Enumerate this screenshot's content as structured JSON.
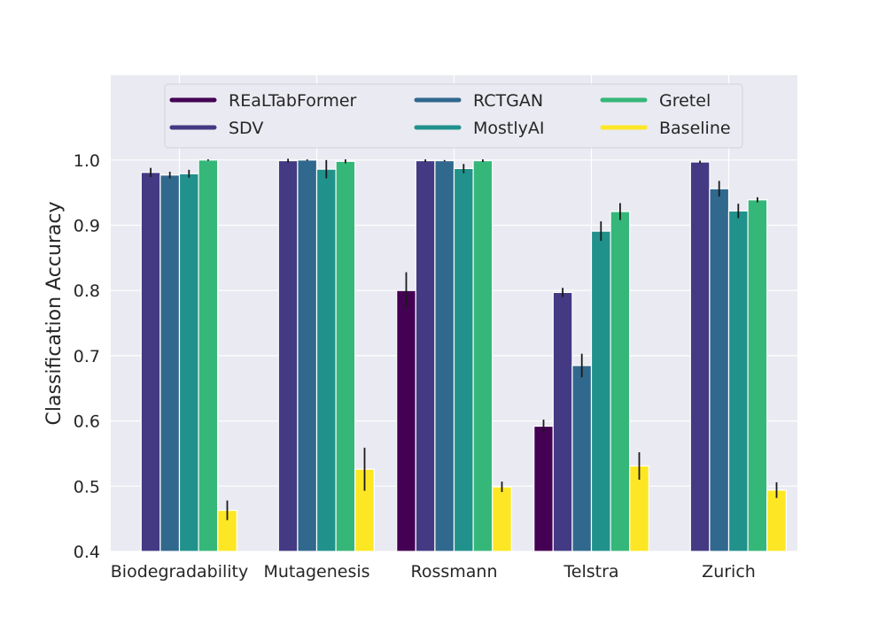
{
  "chart_data": {
    "type": "bar",
    "title": "",
    "xlabel": "",
    "ylabel": "Classification Accuracy",
    "ylim": [
      0.4,
      1.13
    ],
    "yticks": [
      "0.4",
      "0.5",
      "0.6",
      "0.7",
      "0.8",
      "0.9",
      "1.0"
    ],
    "ytick_values": [
      0.4,
      0.5,
      0.6,
      0.7,
      0.8,
      0.9,
      1.0
    ],
    "grid": true,
    "legend_position": "top",
    "background": "#eaeaf2",
    "categories": [
      "Biodegradability",
      "Mutagenesis",
      "Rossmann",
      "Telstra",
      "Zurich"
    ],
    "series": [
      {
        "name": "REaLTabFormer",
        "color": "#440154",
        "values": [
          null,
          null,
          0.8,
          0.592,
          null
        ],
        "errors": [
          null,
          null,
          0.028,
          0.01,
          null
        ]
      },
      {
        "name": "SDV",
        "color": "#443983",
        "values": [
          0.981,
          0.999,
          0.999,
          0.797,
          0.997
        ],
        "errors": [
          0.007,
          0.003,
          0.002,
          0.007,
          0.002
        ]
      },
      {
        "name": "RCTGAN",
        "color": "#31688e",
        "values": [
          0.977,
          1.0,
          0.999,
          0.685,
          0.956
        ],
        "errors": [
          0.005,
          0.001,
          0.001,
          0.018,
          0.012
        ]
      },
      {
        "name": "MostlyAI",
        "color": "#21918c",
        "values": [
          0.979,
          0.986,
          0.987,
          0.891,
          0.922
        ],
        "errors": [
          0.006,
          0.014,
          0.007,
          0.015,
          0.011
        ]
      },
      {
        "name": "Gretel",
        "color": "#35b779",
        "values": [
          1.0,
          0.998,
          0.999,
          0.921,
          0.939
        ],
        "errors": [
          0.001,
          0.003,
          0.002,
          0.013,
          0.004
        ]
      },
      {
        "name": "Baseline",
        "color": "#fde725",
        "values": [
          0.463,
          0.526,
          0.499,
          0.531,
          0.494
        ],
        "errors": [
          0.015,
          0.033,
          0.008,
          0.021,
          0.012
        ]
      }
    ]
  }
}
